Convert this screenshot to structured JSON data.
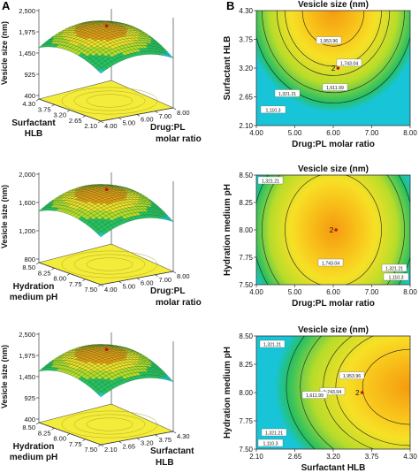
{
  "panel_labels": {
    "a": "A",
    "b": "B"
  },
  "colors": {
    "hot": "#f59a10",
    "warm": "#f7e026",
    "mid": "#b8dc2a",
    "cool": "#27c062",
    "edge": "#18c5d8",
    "floor": "#f3ec3a",
    "wire": "#0e5f22"
  },
  "chart_data": [
    {
      "type": "surface",
      "zlabel": "Vesicle size (nm)",
      "z_ticks": [
        "2,500",
        "1,975",
        "1,450",
        "925",
        "400"
      ],
      "x_label_lines": [
        "Drug:PL",
        "molar ratio"
      ],
      "x_ticks": [
        "8.00",
        "7.00",
        "6.00",
        "5.00",
        "4.00"
      ],
      "y_label_lines": [
        "Surfactant",
        "HLB"
      ],
      "y_ticks": [
        "4.30",
        "3.75",
        "3.20",
        "2.65",
        "2.10"
      ],
      "optimum_marker": true
    },
    {
      "type": "surface",
      "zlabel": "Vesicle size (nm)",
      "z_ticks": [
        "2,000",
        "1,600",
        "1,200",
        "800"
      ],
      "x_label_lines": [
        "Drug:PL",
        "molar ratio"
      ],
      "x_ticks": [
        "8.00",
        "7.00",
        "6.00",
        "5.00",
        "4.00"
      ],
      "y_label_lines": [
        "Hydration",
        "medium pH"
      ],
      "y_ticks": [
        "8.50",
        "8.25",
        "8.00",
        "7.75",
        "7.50"
      ],
      "optimum_marker": true
    },
    {
      "type": "surface",
      "zlabel": "Vesicle size (nm)",
      "z_ticks": [
        "2,500",
        "1,975",
        "1,450",
        "925",
        "400"
      ],
      "x_label_lines": [
        "Surfactant",
        "HLB"
      ],
      "x_ticks": [
        "4.30",
        "3.75",
        "3.20",
        "2.65",
        "2.10"
      ],
      "y_label_lines": [
        "Hydration",
        "medium pH"
      ],
      "y_ticks": [
        "8.50",
        "8.25",
        "8.00",
        "7.75",
        "7.50"
      ],
      "optimum_marker": true
    },
    {
      "type": "contour",
      "title": "Vesicle size (nm)",
      "xlabel": "Drug:PL molar ratio",
      "ylabel": "Surfactant HLB",
      "x_ticks": [
        "4.00",
        "5.00",
        "6.00",
        "7.00",
        "8.00"
      ],
      "y_ticks": [
        "2.10",
        "2.65",
        "3.20",
        "3.75",
        "4.30"
      ],
      "xlim": [
        4.0,
        8.0
      ],
      "ylim": [
        2.1,
        4.3
      ],
      "center": [
        6.0,
        4.3
      ],
      "spread": [
        2.3,
        1.95
      ],
      "levels": [
        "1,953.96",
        "1,743.04",
        "1,611.99",
        "1,321.21",
        "1,110.3"
      ],
      "level_values": [
        1953.96,
        1743.04,
        1611.99,
        1321.21,
        1110.3
      ],
      "point": {
        "label": "2",
        "x": 6.1,
        "y": 3.2
      }
    },
    {
      "type": "contour",
      "title": "Vesicle size (nm)",
      "xlabel": "Drug:PL molar ratio",
      "ylabel": "Hydration medium pH",
      "x_ticks": [
        "4.00",
        "5.00",
        "6.00",
        "7.00",
        "8.00"
      ],
      "y_ticks": [
        "7.50",
        "7.75",
        "8.00",
        "8.25",
        "8.50"
      ],
      "xlim": [
        4.0,
        8.0
      ],
      "ylim": [
        7.5,
        8.5
      ],
      "center": [
        6.0,
        8.0
      ],
      "spread": [
        2.3,
        0.95
      ],
      "levels": [
        "1,743.04",
        "1,321.21",
        "1,321.21",
        "1,110.3"
      ],
      "level_values": [
        1743.04,
        1321.21,
        1110.3
      ],
      "point": {
        "label": "2",
        "x": 6.05,
        "y": 8.0
      }
    },
    {
      "type": "contour",
      "title": "Vesicle size (nm)",
      "xlabel": "Surfactant HLB",
      "ylabel": "Hydration medium pH",
      "x_ticks": [
        "2.10",
        "2.65",
        "3.20",
        "3.75",
        "4.30"
      ],
      "y_ticks": [
        "7.50",
        "7.75",
        "8.00",
        "8.25",
        "8.50"
      ],
      "xlim": [
        2.1,
        4.3
      ],
      "ylim": [
        7.5,
        8.5
      ],
      "center": [
        4.3,
        8.05
      ],
      "spread": [
        1.95,
        0.95
      ],
      "levels": [
        "1,953.96",
        "1,743.04",
        "1,611.99",
        "1,321.21",
        "1,321.21",
        "1,110.3"
      ],
      "level_values": [
        1953.96,
        1743.04,
        1611.99,
        1321.21,
        1110.3
      ],
      "point": {
        "label": "2",
        "x": 3.6,
        "y": 8.0
      }
    }
  ]
}
